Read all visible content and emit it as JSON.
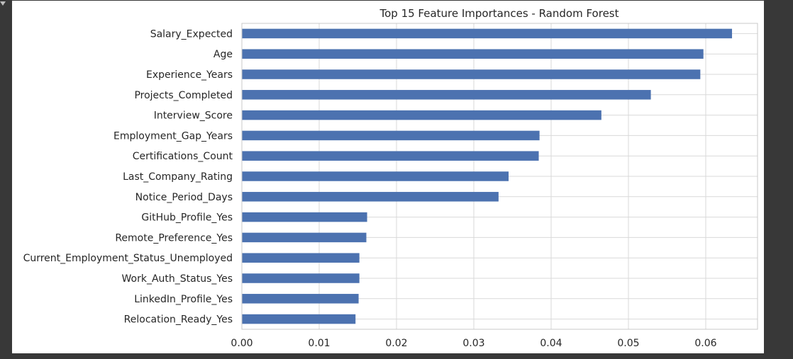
{
  "chart_data": {
    "type": "bar",
    "orientation": "horizontal",
    "title": "Top 15 Feature Importances - Random Forest",
    "xlabel": "",
    "ylabel": "",
    "categories": [
      "Salary_Expected",
      "Age",
      "Experience_Years",
      "Projects_Completed",
      "Interview_Score",
      "Employment_Gap_Years",
      "Certifications_Count",
      "Last_Company_Rating",
      "Notice_Period_Days",
      "GitHub_Profile_Yes",
      "Remote_Preference_Yes",
      "Current_Employment_Status_Unemployed",
      "Work_Auth_Status_Yes",
      "LinkedIn_Profile_Yes",
      "Relocation_Ready_Yes"
    ],
    "values": [
      0.0634,
      0.0597,
      0.0593,
      0.0529,
      0.0465,
      0.0385,
      0.0384,
      0.0345,
      0.0332,
      0.0162,
      0.0161,
      0.0152,
      0.0152,
      0.0151,
      0.0147
    ],
    "xlim": [
      0,
      0.0667
    ],
    "xticks": [
      "0.00",
      "0.01",
      "0.02",
      "0.03",
      "0.04",
      "0.05",
      "0.06"
    ],
    "xtick_values": [
      0,
      0.01,
      0.02,
      0.03,
      0.04,
      0.05,
      0.06
    ],
    "grid": true,
    "bar_color": "#4C72B0",
    "grid_color": "#d9d9d9",
    "axis_color": "#c8c8c8",
    "text_color": "#262626"
  }
}
